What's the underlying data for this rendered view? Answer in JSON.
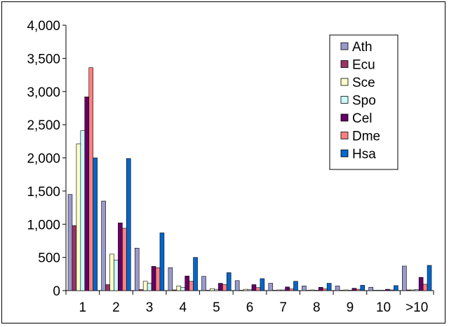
{
  "chart_data": {
    "type": "bar",
    "title": "",
    "xlabel": "",
    "ylabel": "",
    "ylim": [
      0,
      4000
    ],
    "y_ticks": [
      "0",
      "500",
      "1,000",
      "1,500",
      "2,000",
      "2,500",
      "3,000",
      "3,500",
      "4,000"
    ],
    "categories": [
      "1",
      "2",
      "3",
      "4",
      "5",
      "6",
      "7",
      "8",
      "9",
      "10",
      ">10"
    ],
    "legend_position": "top-right",
    "grid": false,
    "series": [
      {
        "name": "Ath",
        "color": "#9999cc",
        "values": [
          1450,
          1350,
          640,
          345,
          215,
          150,
          110,
          70,
          70,
          50,
          370
        ]
      },
      {
        "name": "Ecu",
        "color": "#993366",
        "values": [
          980,
          90,
          15,
          10,
          5,
          5,
          5,
          5,
          5,
          5,
          10
        ]
      },
      {
        "name": "Sce",
        "color": "#ffffcc",
        "values": [
          2210,
          550,
          140,
          70,
          30,
          20,
          10,
          10,
          10,
          5,
          10
        ]
      },
      {
        "name": "Spo",
        "color": "#ccffff",
        "values": [
          2410,
          460,
          110,
          50,
          20,
          15,
          10,
          5,
          5,
          5,
          15
        ]
      },
      {
        "name": "Cel",
        "color": "#660066",
        "values": [
          2920,
          1020,
          365,
          220,
          110,
          90,
          55,
          50,
          35,
          20,
          200
        ]
      },
      {
        "name": "Dme",
        "color": "#ff8080",
        "values": [
          3360,
          940,
          345,
          140,
          90,
          45,
          25,
          25,
          20,
          10,
          95
        ]
      },
      {
        "name": "Hsa",
        "color": "#0066cc",
        "values": [
          2000,
          1990,
          870,
          500,
          270,
          180,
          140,
          110,
          80,
          75,
          380
        ]
      }
    ]
  }
}
